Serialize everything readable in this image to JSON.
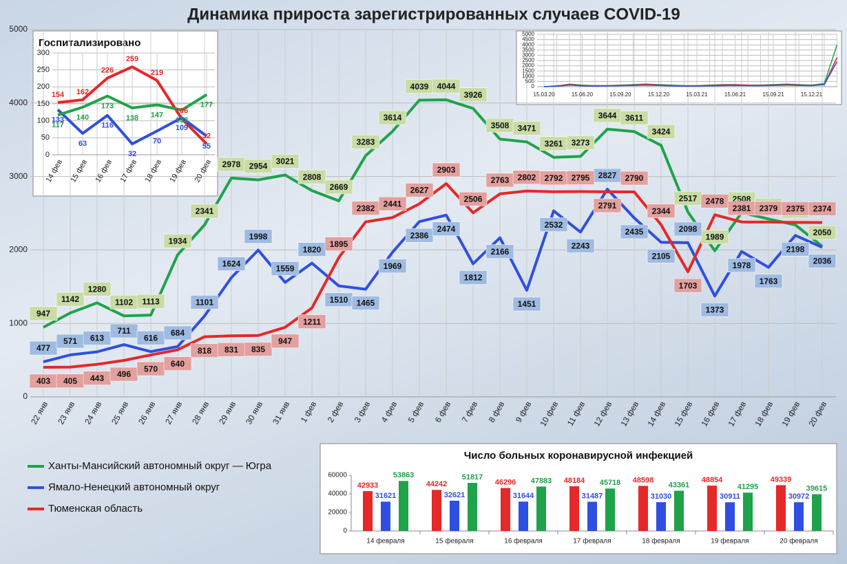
{
  "chart_data": [
    {
      "type": "line",
      "title": "Динамика прироста зарегистрированных случаев COVID-19",
      "categories": [
        "22 янв",
        "23 янв",
        "24 янв",
        "25 янв",
        "26 янв",
        "27 янв",
        "28 янв",
        "29 янв",
        "30 янв",
        "31 янв",
        "1 фев",
        "2 фев",
        "3 фев",
        "4 фев",
        "5 фев",
        "6 фев",
        "7 фев",
        "8 фев",
        "9 фев",
        "10 фев",
        "11 фев",
        "12 фев",
        "13 фев",
        "14 фев",
        "15 фев",
        "16 фев",
        "17 фев",
        "18 фев",
        "19 фев",
        "20 фев"
      ],
      "series": [
        {
          "name": "Ханты-Мансийский автономный округ — Югра",
          "color": "#1fa34a",
          "label_fill": "#c8dca4",
          "values": [
            947,
            1142,
            1280,
            1102,
            1113,
            1934,
            2341,
            2978,
            2954,
            3021,
            2808,
            2669,
            3283,
            3614,
            4039,
            4044,
            3926,
            3508,
            3471,
            3261,
            3273,
            3644,
            3611,
            3424,
            2517,
            1989,
            2508,
            2422,
            2341,
            2050
          ]
        },
        {
          "name": "Ямало-Ненецкий автономный округ",
          "color": "#2f4fe0",
          "label_fill": "#9fbbe2",
          "values": [
            477,
            571,
            613,
            711,
            616,
            684,
            1101,
            1624,
            1998,
            1559,
            1820,
            1510,
            1465,
            1969,
            2386,
            2474,
            1812,
            2166,
            1451,
            2532,
            2243,
            2827,
            2435,
            2105,
            2098,
            1373,
            1978,
            1763,
            2198,
            2036
          ]
        },
        {
          "name": "Тюменская область",
          "color": "#e52828",
          "label_fill": "#e2a09e",
          "values": [
            403,
            405,
            443,
            496,
            570,
            640,
            818,
            831,
            835,
            947,
            1211,
            1895,
            2382,
            2441,
            2627,
            2903,
            2506,
            2763,
            2802,
            2792,
            2795,
            2791,
            2790,
            2344,
            1703,
            2478,
            2381,
            2379,
            2375,
            2374
          ]
        }
      ],
      "ylim": [
        0,
        5000
      ],
      "yticks": [
        0,
        1000,
        2000,
        3000,
        4000,
        5000
      ],
      "grid": true
    },
    {
      "type": "line",
      "title": "Госпитализировано",
      "categories": [
        "14 фев",
        "15 фев",
        "16 фев",
        "17 фев",
        "18 фев",
        "19 фев",
        "20 фев"
      ],
      "series": [
        {
          "color": "#e52828",
          "values": [
            154,
            162,
            226,
            259,
            219,
            106,
            32
          ]
        },
        {
          "color": "#2f4fe0",
          "values": [
            133,
            63,
            116,
            32,
            70,
            109,
            55
          ]
        },
        {
          "color": "#1fa34a",
          "values": [
            117,
            140,
            173,
            138,
            147,
            132,
            177
          ]
        }
      ],
      "ylim": [
        0,
        300
      ],
      "yticks": [
        0,
        50,
        100,
        150,
        200,
        250,
        300
      ],
      "grid": true
    },
    {
      "type": "line",
      "categories": [
        "15.03.20",
        null,
        null,
        "15.06.20",
        null,
        null,
        "15.09.20",
        null,
        null,
        "15.12.20",
        null,
        null,
        "15.03.21",
        null,
        null,
        "15.06.21",
        null,
        null,
        "15.09.21",
        null,
        null,
        "15.12.21",
        null,
        null
      ],
      "series": [
        {
          "color": "#1fa34a",
          "values": [
            0,
            50,
            250,
            150,
            100,
            100,
            150,
            200,
            250,
            200,
            150,
            100,
            100,
            150,
            200,
            200,
            150,
            150,
            200,
            250,
            200,
            150,
            300,
            4000
          ]
        },
        {
          "color": "#e52828",
          "values": [
            0,
            80,
            200,
            100,
            80,
            100,
            120,
            150,
            250,
            150,
            100,
            80,
            80,
            120,
            150,
            180,
            150,
            130,
            150,
            200,
            150,
            120,
            200,
            2800
          ]
        },
        {
          "color": "#2f4fe0",
          "values": [
            0,
            30,
            150,
            80,
            60,
            80,
            100,
            120,
            150,
            120,
            80,
            60,
            60,
            80,
            100,
            120,
            100,
            100,
            120,
            150,
            120,
            100,
            200,
            2400
          ]
        }
      ],
      "ylim": [
        0,
        5000
      ],
      "yticks": [
        0,
        500,
        1000,
        1500,
        2000,
        2500,
        3000,
        3500,
        4000,
        4500,
        5000
      ],
      "grid": true
    },
    {
      "type": "bar",
      "title": "Число больных коронавирусной инфекцией",
      "categories": [
        "14 февраля",
        "15 февраля",
        "16 февраля",
        "17 февраля",
        "18 февраля",
        "19 февраля",
        "20 февраля"
      ],
      "series": [
        {
          "color": "#e52828",
          "values": [
            42933,
            44242,
            46296,
            48184,
            48598,
            48854,
            49339
          ]
        },
        {
          "color": "#2f4fe0",
          "values": [
            31621,
            32621,
            31644,
            31487,
            31030,
            30911,
            30972
          ]
        },
        {
          "color": "#1fa34a",
          "values": [
            53863,
            51817,
            47883,
            45718,
            43361,
            41295,
            39615
          ]
        }
      ],
      "ylim": [
        0,
        60000
      ],
      "yticks": [
        0,
        20000,
        40000,
        60000
      ],
      "grid": false
    }
  ]
}
